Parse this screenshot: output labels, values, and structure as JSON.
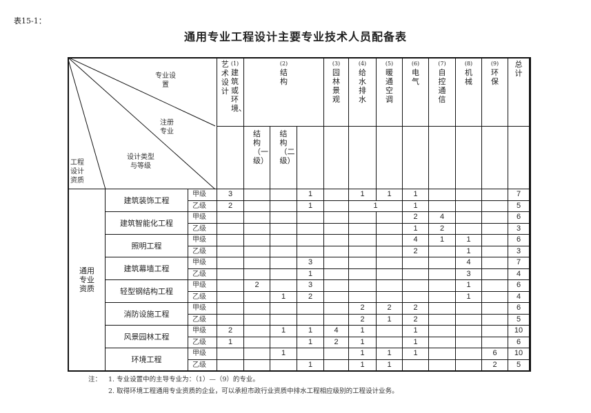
{
  "table_number": "表15-1：",
  "title": "通用专业工程设计主要专业技术人员配备表",
  "corner": {
    "specialty_setting": "专业设置",
    "registered_specialty": "注册专业",
    "design_type_grade": "设计类型与等级",
    "qualification": "工程设计资质"
  },
  "columns": {
    "c1": {
      "num": "(1)",
      "name": "建筑或环境、",
      "name2": "艺术设计"
    },
    "c2": {
      "num": "(2)",
      "name": "结构",
      "sub1": "结构（一级）",
      "sub2": "结构（二级）"
    },
    "c3": {
      "num": "(3)",
      "name": "园林景观"
    },
    "c4": {
      "num": "(4)",
      "name": "给水排水"
    },
    "c5": {
      "num": "(5)",
      "name": "暖通空调"
    },
    "c6": {
      "num": "(6)",
      "name": "电气"
    },
    "c7": {
      "num": "(7)",
      "name": "自控通信"
    },
    "c8": {
      "num": "(8)",
      "name": "机械"
    },
    "c9": {
      "num": "(9)",
      "name": "环保"
    },
    "total": {
      "name": "总计"
    }
  },
  "group_label": "通用专业资质",
  "column_order": [
    "(1)",
    "(2)结构一级",
    "(2)结构二级",
    "(2)",
    "(3)",
    "(4)",
    "(5)",
    "(6)",
    "(7)",
    "(8)",
    "(9)",
    "总计"
  ],
  "rows": [
    {
      "project": "建筑装饰工程",
      "grades": [
        {
          "grade": "甲级",
          "values": [
            "3",
            "",
            "",
            "1",
            "",
            "1",
            "1",
            "1",
            "",
            "",
            "",
            "7"
          ]
        },
        {
          "grade": "乙级",
          "values": [
            "2",
            "",
            "",
            "1",
            "",
            "1",
            "",
            "1",
            "",
            "",
            "",
            "5"
          ],
          "merged_4_5": true
        }
      ]
    },
    {
      "project": "建筑智能化工程",
      "grades": [
        {
          "grade": "甲级",
          "values": [
            "",
            "",
            "",
            "",
            "",
            "",
            "",
            "2",
            "4",
            "",
            "",
            "6"
          ]
        },
        {
          "grade": "乙级",
          "values": [
            "",
            "",
            "",
            "",
            "",
            "",
            "",
            "1",
            "2",
            "",
            "",
            "3"
          ]
        }
      ]
    },
    {
      "project": "照明工程",
      "grades": [
        {
          "grade": "甲级",
          "values": [
            "",
            "",
            "",
            "",
            "",
            "",
            "",
            "4",
            "1",
            "1",
            "",
            "6"
          ]
        },
        {
          "grade": "乙级",
          "values": [
            "",
            "",
            "",
            "",
            "",
            "",
            "",
            "2",
            "",
            "1",
            "",
            "3"
          ]
        }
      ]
    },
    {
      "project": "建筑幕墙工程",
      "grades": [
        {
          "grade": "甲级",
          "values": [
            "",
            "",
            "",
            "3",
            "",
            "",
            "",
            "",
            "",
            "4",
            "",
            "7"
          ]
        },
        {
          "grade": "乙级",
          "values": [
            "",
            "",
            "",
            "1",
            "",
            "",
            "",
            "",
            "",
            "3",
            "",
            "4"
          ]
        }
      ]
    },
    {
      "project": "轻型钢结构工程",
      "grades": [
        {
          "grade": "甲级",
          "values": [
            "",
            "2",
            "",
            "3",
            "",
            "",
            "",
            "",
            "",
            "1",
            "",
            "6"
          ]
        },
        {
          "grade": "乙级",
          "values": [
            "",
            "",
            "1",
            "2",
            "",
            "",
            "",
            "",
            "",
            "1",
            "",
            "4"
          ]
        }
      ]
    },
    {
      "project": "消防设施工程",
      "grades": [
        {
          "grade": "甲级",
          "values": [
            "",
            "",
            "",
            "",
            "",
            "2",
            "2",
            "2",
            "",
            "",
            "",
            "6"
          ]
        },
        {
          "grade": "乙级",
          "values": [
            "",
            "",
            "",
            "",
            "",
            "2",
            "1",
            "2",
            "",
            "",
            "",
            "5"
          ]
        }
      ]
    },
    {
      "project": "风景园林工程",
      "grades": [
        {
          "grade": "甲级",
          "values": [
            "2",
            "",
            "1",
            "1",
            "4",
            "1",
            "",
            "1",
            "",
            "",
            "",
            "10"
          ]
        },
        {
          "grade": "乙级",
          "values": [
            "1",
            "",
            "",
            "1",
            "2",
            "1",
            "",
            "1",
            "",
            "",
            "",
            "6"
          ]
        }
      ]
    },
    {
      "project": "环境工程",
      "grades": [
        {
          "grade": "甲级",
          "values": [
            "",
            "",
            "1",
            "",
            "",
            "1",
            "1",
            "1",
            "",
            "",
            "6",
            "10"
          ]
        },
        {
          "grade": "乙级",
          "values": [
            "",
            "",
            "",
            "1",
            "",
            "1",
            "1",
            "",
            "",
            "",
            "2",
            "5"
          ]
        }
      ]
    }
  ],
  "notes": {
    "prefix": "注：",
    "note1": "1. 专业设置中的主导专业为：（1）—（9）的专业。",
    "note2": "2. 取得环境工程通用专业资质的企业，可以承担市政行业资质中排水工程相应级别的工程设计业务。"
  }
}
